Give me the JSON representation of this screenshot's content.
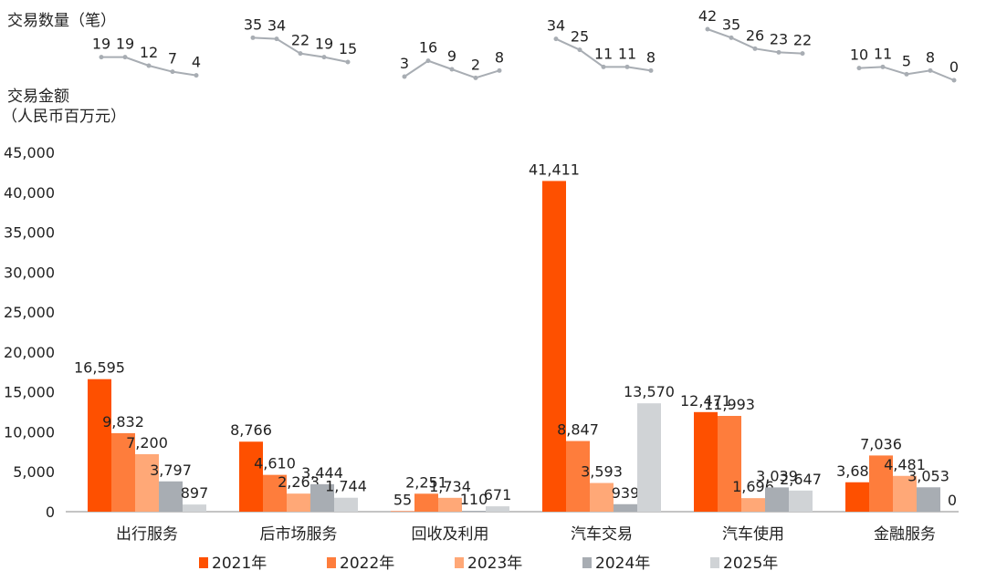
{
  "chart_data": {
    "type": "bar",
    "count_label": "交易数量（笔）",
    "amount_label_line1": "交易金额",
    "amount_label_line2": "（人民币百万元）",
    "categories": [
      "出行服务",
      "后市场服务",
      "回收及利用",
      "汽车交易",
      "汽车使用",
      "金融服务"
    ],
    "ylim": [
      0,
      45000
    ],
    "yticks": [
      0,
      5000,
      10000,
      15000,
      20000,
      25000,
      30000,
      35000,
      40000,
      45000
    ],
    "ytick_labels": [
      "0",
      "5,000",
      "10,000",
      "15,000",
      "20,000",
      "25,000",
      "30,000",
      "35,000",
      "40,000",
      "45,000"
    ],
    "grid": false,
    "legend_position": "bottom",
    "series": [
      {
        "name": "2021年",
        "color": "#fe5000",
        "values": [
          16595,
          8766,
          55,
          41411,
          12471,
          3683
        ],
        "labels": [
          "16,595",
          "8,766",
          "55",
          "41,411",
          "12,471",
          "3,683"
        ]
      },
      {
        "name": "2022年",
        "color": "#fe7d3c",
        "values": [
          9832,
          4610,
          2251,
          8847,
          11993,
          7036
        ],
        "labels": [
          "9,832",
          "4,610",
          "2,251",
          "8,847",
          "11,993",
          "7,036"
        ]
      },
      {
        "name": "2023年",
        "color": "#ffa877",
        "values": [
          7200,
          2263,
          1734,
          3593,
          1696,
          4481
        ],
        "labels": [
          "7,200",
          "2,263",
          "1,734",
          "3,593",
          "1,696",
          "4,481"
        ]
      },
      {
        "name": "2024年",
        "color": "#a8adb3",
        "values": [
          3797,
          3444,
          110,
          939,
          3039,
          3053
        ],
        "labels": [
          "3,797",
          "3,444",
          "110",
          "939",
          "3,039",
          "3,053"
        ]
      },
      {
        "name": "2025年",
        "color": "#d0d3d6",
        "values": [
          897,
          1744,
          671,
          13570,
          2647,
          0
        ],
        "labels": [
          "897",
          "1,744",
          "671",
          "13,570",
          "2,647",
          "0"
        ]
      }
    ],
    "counts": [
      [
        19,
        19,
        12,
        7,
        4
      ],
      [
        35,
        34,
        22,
        19,
        15
      ],
      [
        3,
        16,
        9,
        2,
        8
      ],
      [
        34,
        25,
        11,
        11,
        8
      ],
      [
        42,
        35,
        26,
        23,
        22
      ],
      [
        10,
        11,
        5,
        8,
        0
      ]
    ],
    "count_line_color": "#a8adb3"
  }
}
